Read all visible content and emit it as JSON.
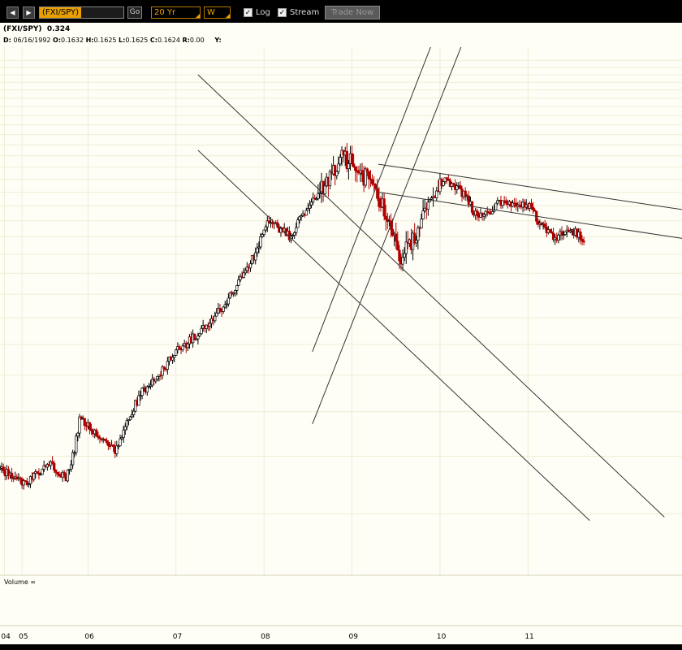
{
  "toolbar": {
    "back_glyph": "◀",
    "forward_glyph": "▶",
    "ticker": "(FXI/SPY)",
    "go_label": "Go",
    "period": "20 Yr",
    "interval": "W",
    "log_label": "Log",
    "stream_label": "Stream",
    "check_glyph": "✓",
    "trade_label": "Trade Now"
  },
  "header": {
    "symbol": "(FXI/SPY)",
    "last": "0.324",
    "date_label": "D:",
    "date": "06/16/1992",
    "o_label": "O:",
    "o": "0.1632",
    "h_label": "H:",
    "h": "0.1625",
    "l_label": "L:",
    "l": "0.1625",
    "c_label": "C:",
    "c": "0.1624",
    "r_label": "R:",
    "r": "0.00",
    "y_label": "Y:"
  },
  "colors": {
    "up": "#000000",
    "down": "#b00000",
    "grid": "#f0ecd5",
    "trend": "#333333",
    "bg": "#fffef6"
  },
  "chart_data": {
    "type": "candlestick",
    "title": "(FXI/SPY)",
    "x_axis": {
      "start_year": 2004,
      "end_year": 2011.75,
      "ticks": [
        {
          "label": "04",
          "x": 2004.05
        },
        {
          "label": "05",
          "x": 2004.25
        },
        {
          "label": "06",
          "x": 2005.0
        },
        {
          "label": "07",
          "x": 2006.0
        },
        {
          "label": "08",
          "x": 2007.0
        },
        {
          "label": "09",
          "x": 2008.0
        },
        {
          "label": "10",
          "x": 2009.0
        },
        {
          "label": "11",
          "x": 2010.0
        }
      ]
    },
    "y_scale": "log",
    "ylim": [
      0.045,
      0.62
    ],
    "volume_label": "Volume ∞",
    "anchors": [
      [
        2004.0,
        0.075
      ],
      [
        2004.3,
        0.07
      ],
      [
        2004.55,
        0.077
      ],
      [
        2004.75,
        0.072
      ],
      [
        2004.85,
        0.083
      ],
      [
        2004.9,
        0.096
      ],
      [
        2005.1,
        0.09
      ],
      [
        2005.3,
        0.082
      ],
      [
        2005.6,
        0.11
      ],
      [
        2005.85,
        0.123
      ],
      [
        2006.0,
        0.135
      ],
      [
        2006.3,
        0.15
      ],
      [
        2006.55,
        0.17
      ],
      [
        2006.7,
        0.19
      ],
      [
        2006.9,
        0.22
      ],
      [
        2007.05,
        0.26
      ],
      [
        2007.3,
        0.24
      ],
      [
        2007.5,
        0.28
      ],
      [
        2007.68,
        0.31
      ],
      [
        2007.9,
        0.36
      ],
      [
        2008.1,
        0.33
      ],
      [
        2008.25,
        0.31
      ],
      [
        2008.4,
        0.262
      ],
      [
        2008.55,
        0.218
      ],
      [
        2008.65,
        0.23
      ],
      [
        2008.77,
        0.255
      ],
      [
        2008.95,
        0.3
      ],
      [
        2009.05,
        0.32
      ],
      [
        2009.25,
        0.3
      ],
      [
        2009.4,
        0.27
      ],
      [
        2009.5,
        0.265
      ],
      [
        2009.65,
        0.285
      ],
      [
        2009.85,
        0.28
      ],
      [
        2010.0,
        0.282
      ],
      [
        2010.15,
        0.255
      ],
      [
        2010.3,
        0.24
      ],
      [
        2010.5,
        0.248
      ],
      [
        2010.65,
        0.236
      ]
    ],
    "trendlines": [
      {
        "name": "outer-channel-upper",
        "from": [
          2008.3,
          0.345
        ],
        "to": [
          2011.75,
          0.275
        ]
      },
      {
        "name": "outer-channel-lower",
        "from": [
          2008.3,
          0.3
        ],
        "to": [
          2011.75,
          0.238
        ]
      },
      {
        "name": "downtrend-upper",
        "from": [
          2006.25,
          0.54
        ],
        "to": [
          2011.55,
          0.059
        ]
      },
      {
        "name": "downtrend-lower",
        "from": [
          2006.25,
          0.37
        ],
        "to": [
          2010.7,
          0.058
        ]
      },
      {
        "name": "uptrend-steep-left",
        "from": [
          2007.55,
          0.135
        ],
        "to": [
          2009.15,
          0.83
        ]
      },
      {
        "name": "uptrend-steep-right",
        "from": [
          2007.55,
          0.094
        ],
        "to": [
          2009.5,
          0.83
        ]
      }
    ]
  }
}
